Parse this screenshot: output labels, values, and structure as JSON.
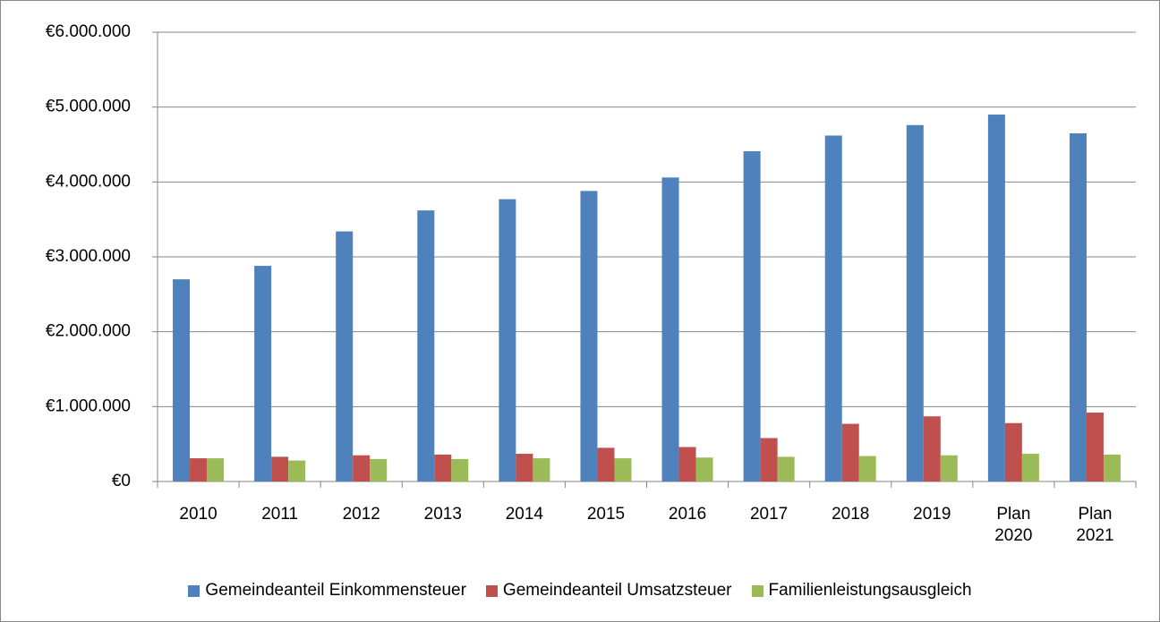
{
  "chart_data": {
    "type": "bar",
    "categories": [
      "2010",
      "2011",
      "2012",
      "2013",
      "2014",
      "2015",
      "2016",
      "2017",
      "2018",
      "2019",
      "Plan 2020",
      "Plan 2021"
    ],
    "series": [
      {
        "name": "Gemeindeanteil Einkommensteuer",
        "color": "#4f81bd",
        "values": [
          2700000,
          2880000,
          3340000,
          3620000,
          3770000,
          3880000,
          4060000,
          4410000,
          4620000,
          4760000,
          4900000,
          4650000
        ]
      },
      {
        "name": "Gemeindeanteil Umsatzsteuer",
        "color": "#c0504d",
        "values": [
          310000,
          330000,
          350000,
          360000,
          370000,
          450000,
          460000,
          580000,
          770000,
          870000,
          780000,
          920000
        ]
      },
      {
        "name": "Familienleistungsausgleich",
        "color": "#9bbb59",
        "values": [
          310000,
          280000,
          300000,
          300000,
          310000,
          310000,
          320000,
          330000,
          340000,
          350000,
          370000,
          360000
        ]
      }
    ],
    "ylim": [
      0,
      6000000
    ],
    "yticks": [
      {
        "value": 0,
        "label": "€0"
      },
      {
        "value": 1000000,
        "label": "€1.000.000"
      },
      {
        "value": 2000000,
        "label": "€2.000.000"
      },
      {
        "value": 3000000,
        "label": "€3.000.000"
      },
      {
        "value": 4000000,
        "label": "€4.000.000"
      },
      {
        "value": 5000000,
        "label": "€5.000.000"
      },
      {
        "value": 6000000,
        "label": "€6.000.000"
      }
    ],
    "grid": true,
    "legend": "bottom"
  }
}
